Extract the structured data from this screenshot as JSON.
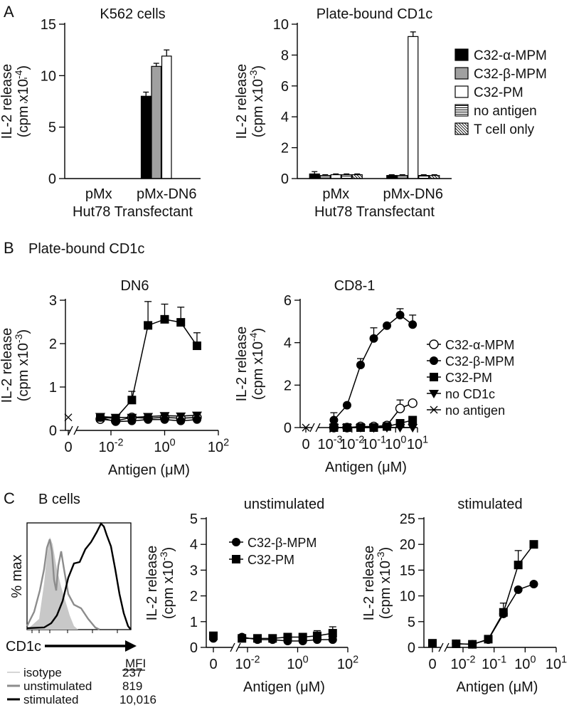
{
  "panel_letters": [
    "A",
    "B",
    "C"
  ],
  "chart_data": [
    {
      "id": "A1",
      "type": "bar",
      "title": "K562 cells",
      "ylabel": [
        "IL-2 release",
        "(cpm x10",
        "-4",
        ")"
      ],
      "ylim": [
        0,
        15
      ],
      "yticks": [
        0,
        5,
        10,
        15
      ],
      "categories": [
        "pMx",
        "pMx-DN6"
      ],
      "xlabel2": "Hut78 Transfectant",
      "series": [
        {
          "name": "C32-α-MPM",
          "values": [
            0,
            8.0
          ],
          "err": [
            0,
            0.4
          ]
        },
        {
          "name": "C32-β-MPM",
          "values": [
            0,
            10.9
          ],
          "err": [
            0,
            0.3
          ]
        },
        {
          "name": "C32-PM",
          "values": [
            0,
            11.9
          ],
          "err": [
            0,
            0.6
          ]
        },
        {
          "name": "no antigen",
          "values": [
            0,
            0
          ],
          "err": [
            0,
            0
          ]
        },
        {
          "name": "T cell only",
          "values": [
            0,
            0
          ],
          "err": [
            0,
            0
          ]
        }
      ]
    },
    {
      "id": "A2",
      "type": "bar",
      "title": "Plate-bound CD1c",
      "ylabel": [
        "IL-2 release",
        "(cpm x10",
        "-3",
        ")"
      ],
      "ylim": [
        0,
        10
      ],
      "yticks": [
        0,
        2,
        4,
        6,
        8,
        10
      ],
      "categories": [
        "pMx",
        "pMx-DN6"
      ],
      "xlabel2": "Hut78 Transfectant",
      "legend_position": "right",
      "series": [
        {
          "name": "C32-α-MPM",
          "values": [
            0.3,
            0.2
          ],
          "err": [
            0.15,
            0.05
          ]
        },
        {
          "name": "C32-β-MPM",
          "values": [
            0.2,
            0.2
          ],
          "err": [
            0.05,
            0.05
          ]
        },
        {
          "name": "C32-PM",
          "values": [
            0.25,
            9.2
          ],
          "err": [
            0.05,
            0.3
          ]
        },
        {
          "name": "no antigen",
          "values": [
            0.25,
            0.2
          ],
          "err": [
            0.05,
            0.05
          ]
        },
        {
          "name": "T cell only",
          "values": [
            0.25,
            0.2
          ],
          "err": [
            0.05,
            0.05
          ]
        }
      ]
    },
    {
      "id": "B1",
      "type": "line",
      "heading": "Plate-bound CD1c",
      "title": "DN6",
      "ylabel": [
        "IL-2 release",
        "(cpm x10",
        "-3",
        ")"
      ],
      "ylim": [
        0,
        3
      ],
      "yticks": [
        "0",
        "1",
        "2",
        "3"
      ],
      "xscale": "log",
      "xlabel": "Antigen (μM)",
      "xticks": [
        {
          "base": "0",
          "exp": ""
        },
        {
          "base": "10",
          "exp": "-2"
        },
        {
          "base": "10",
          "exp": "0"
        },
        {
          "base": "10",
          "exp": "2"
        }
      ],
      "series": [
        {
          "name": "C32-α-MPM",
          "x": [
            0.004,
            0.015,
            0.06,
            0.24,
            1.0,
            4.0,
            16.0
          ],
          "y": [
            0.26,
            0.22,
            0.3,
            0.28,
            0.3,
            0.28,
            0.3
          ]
        },
        {
          "name": "C32-β-MPM",
          "x": [
            0.004,
            0.015,
            0.06,
            0.24,
            1.0,
            4.0,
            16.0
          ],
          "y": [
            0.3,
            0.2,
            0.22,
            0.25,
            0.25,
            0.22,
            0.25
          ]
        },
        {
          "name": "C32-PM",
          "x": [
            0.004,
            0.015,
            0.06,
            0.24,
            1.0,
            4.0,
            16.0
          ],
          "y": [
            0.3,
            0.28,
            0.7,
            2.42,
            2.56,
            2.49,
            1.95
          ],
          "err": [
            0.05,
            0.05,
            0.2,
            0.55,
            0.35,
            0.35,
            0.3
          ]
        },
        {
          "name": "no CD1c",
          "x": [
            0.004,
            0.015,
            0.06,
            0.24,
            1.0,
            4.0,
            16.0
          ],
          "y": [
            0.32,
            0.3,
            0.3,
            0.32,
            0.34,
            0.33,
            0.35
          ]
        },
        {
          "name": "no antigen",
          "x": [
            0
          ],
          "y": [
            0.3
          ]
        }
      ]
    },
    {
      "id": "B2",
      "type": "line",
      "title": "CD8-1",
      "ylabel": [
        "IL-2 release",
        "(cpm x10",
        "-4",
        ")"
      ],
      "ylim": [
        0,
        6
      ],
      "yticks": [
        "0",
        "2",
        "4",
        "6"
      ],
      "xscale": "log",
      "xlabel": "Antigen (μM)",
      "xticks": [
        {
          "base": "0",
          "exp": ""
        },
        {
          "base": "10",
          "exp": "-3"
        },
        {
          "base": "10",
          "exp": "-2"
        },
        {
          "base": "10",
          "exp": "-1"
        },
        {
          "base": "10",
          "exp": "0"
        },
        {
          "base": "10",
          "exp": "1"
        }
      ],
      "legend_position": "right",
      "series": [
        {
          "name": "C32-α-MPM",
          "x": [
            0.0015,
            0.006,
            0.025,
            0.1,
            0.4,
            1.6,
            6.0
          ],
          "y": [
            0,
            0,
            0.05,
            0.05,
            0.1,
            0.9,
            1.15
          ],
          "err": [
            0,
            0,
            0,
            0,
            0.05,
            0.4,
            0.1
          ]
        },
        {
          "name": "C32-β-MPM",
          "x": [
            0.0015,
            0.006,
            0.025,
            0.1,
            0.4,
            1.6,
            6.0
          ],
          "y": [
            0.35,
            1.05,
            2.95,
            4.2,
            4.8,
            5.3,
            4.85
          ],
          "err": [
            0.35,
            0.1,
            0.3,
            0.5,
            0.0,
            0.3,
            0.45
          ]
        },
        {
          "name": "C32-PM",
          "x": [
            0.0015,
            0.006,
            0.025,
            0.1,
            0.4,
            1.6,
            6.0
          ],
          "y": [
            0,
            0,
            0,
            0,
            0.05,
            0.2,
            0.35
          ]
        },
        {
          "name": "no CD1c",
          "x": [
            0.0015,
            0.006,
            0.025,
            0.1,
            0.4,
            1.6,
            6.0
          ],
          "y": [
            0,
            0,
            0,
            0,
            0,
            0,
            0
          ]
        },
        {
          "name": "no antigen",
          "x": [
            0
          ],
          "y": [
            0
          ]
        }
      ]
    },
    {
      "id": "C1",
      "type": "histogram",
      "title": "B cells",
      "ylabel": "% max",
      "xlabel": "CD1c",
      "mfi_header": "MFI",
      "series": [
        {
          "name": "isotype",
          "mfi": "237",
          "color": "#c8c8c8"
        },
        {
          "name": "unstimulated",
          "mfi": "819",
          "color": "#8c8c8c"
        },
        {
          "name": "stimulated",
          "mfi": "10,016",
          "color": "#000000"
        }
      ]
    },
    {
      "id": "C2",
      "type": "line",
      "title": "unstimulated",
      "ylabel": [
        "IL-2 release",
        "(cpm x10",
        "-3",
        ")"
      ],
      "ylim": [
        0,
        5
      ],
      "yticks": [
        "0",
        "1",
        "2",
        "3",
        "4",
        "5"
      ],
      "xscale": "log",
      "xlabel": "Antigen (μM)",
      "xticks": [
        {
          "base": "0",
          "exp": ""
        },
        {
          "base": "10",
          "exp": "-2"
        },
        {
          "base": "10",
          "exp": "0"
        },
        {
          "base": "10",
          "exp": "2"
        }
      ],
      "legend_position": "top-left",
      "series": [
        {
          "name": "C32-β-MPM",
          "x": [
            0,
            0.006,
            0.025,
            0.1,
            0.4,
            1.6,
            6.0,
            25.0
          ],
          "y": [
            0.35,
            0.4,
            0.3,
            0.3,
            0.25,
            0.25,
            0.3,
            0.3
          ]
        },
        {
          "name": "C32-PM",
          "x": [
            0,
            0.006,
            0.025,
            0.1,
            0.4,
            1.6,
            6.0,
            25.0
          ],
          "y": [
            0.45,
            0.35,
            0.35,
            0.35,
            0.4,
            0.4,
            0.45,
            0.55
          ],
          "err": [
            0.1,
            0.05,
            0.05,
            0.05,
            0.1,
            0.1,
            0.2,
            0.25
          ]
        }
      ]
    },
    {
      "id": "C3",
      "type": "line",
      "title": "stimulated",
      "ylabel": [
        "IL-2 release",
        "(cpm x10",
        "-3",
        ")"
      ],
      "ylim": [
        0,
        25
      ],
      "yticks": [
        "0",
        "5",
        "10",
        "15",
        "20",
        "25"
      ],
      "xscale": "log",
      "xlabel": "Antigen (μM)",
      "xticks": [
        {
          "base": "0",
          "exp": ""
        },
        {
          "base": "10",
          "exp": "-2"
        },
        {
          "base": "10",
          "exp": "-1"
        },
        {
          "base": "10",
          "exp": "0"
        },
        {
          "base": "10",
          "exp": "1"
        }
      ],
      "series": [
        {
          "name": "C32-β-MPM",
          "x": [
            0.006,
            0.02,
            0.065,
            0.2,
            0.6,
            1.9
          ],
          "y": [
            0.7,
            0.6,
            1.5,
            6.5,
            11.2,
            12.3
          ]
        },
        {
          "name": "C32-PM",
          "x": [
            0,
            0.006,
            0.02,
            0.065,
            0.2,
            0.6,
            1.9
          ],
          "y": [
            0.8,
            0.7,
            0.6,
            1.6,
            6.8,
            16.0,
            20.0
          ],
          "err": [
            0.1,
            0.1,
            0.1,
            0.3,
            1.8,
            2.8,
            0.3
          ]
        }
      ]
    }
  ]
}
